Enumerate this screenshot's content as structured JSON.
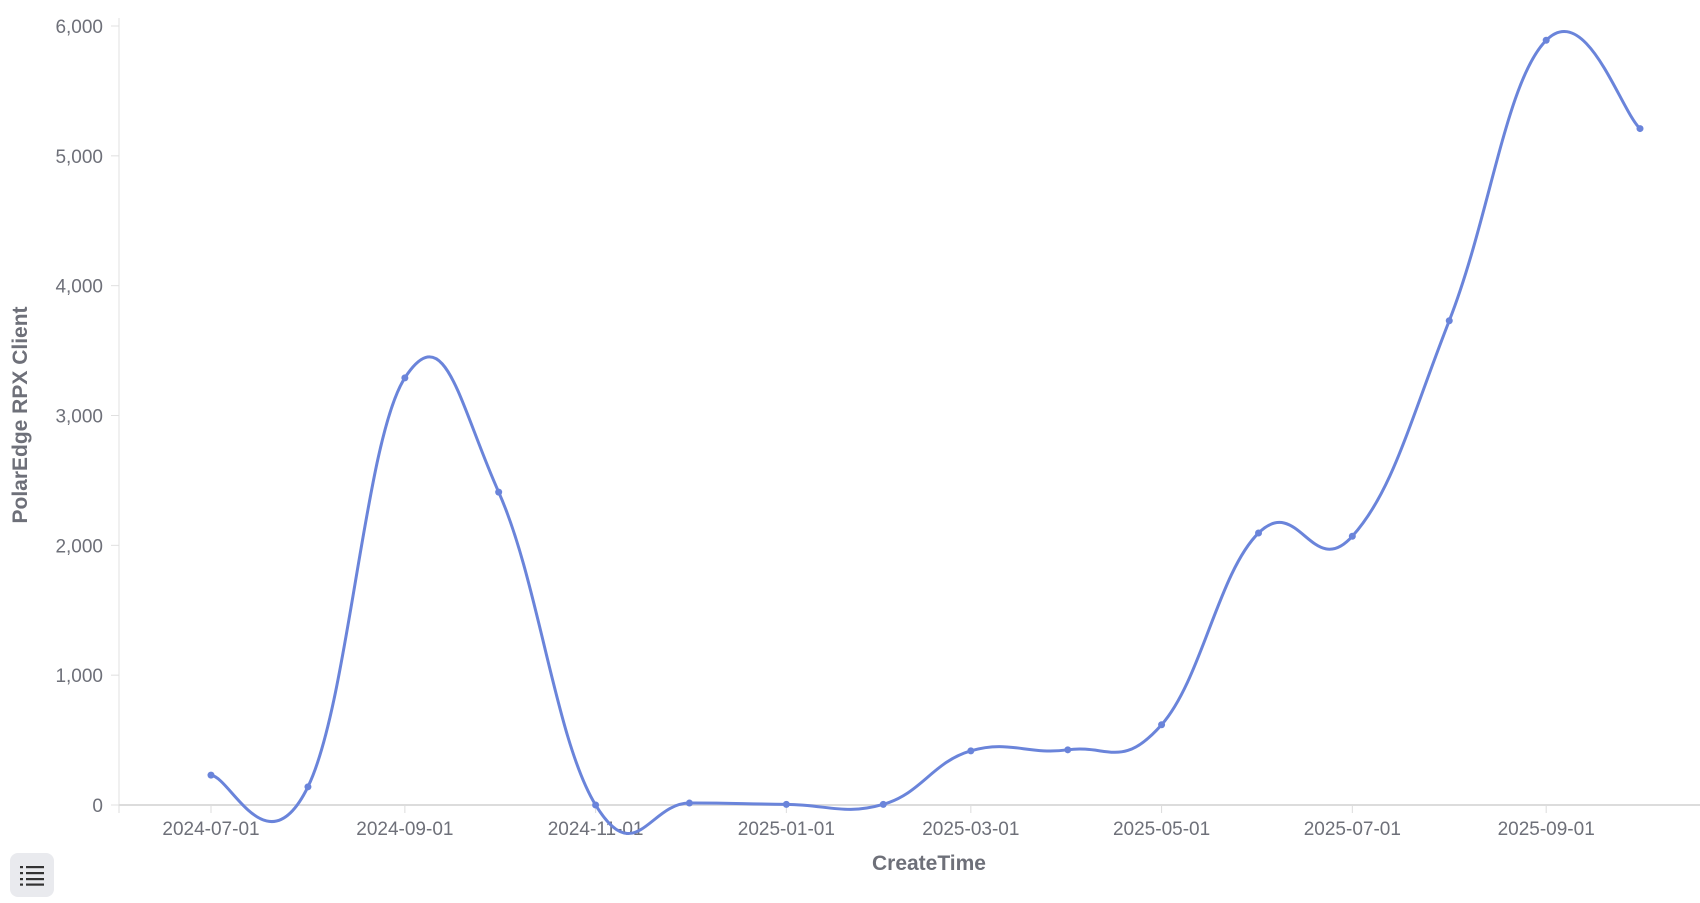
{
  "chart_data": {
    "type": "line",
    "smooth": true,
    "title": "",
    "xlabel": "CreateTime",
    "ylabel": "PolarEdge RPX Client",
    "x": [
      "2024-07-01",
      "2024-08-01",
      "2024-09-01",
      "2024-10-01",
      "2024-11-01",
      "2024-12-01",
      "2025-01-01",
      "2025-02-01",
      "2025-03-01",
      "2025-04-01",
      "2025-05-01",
      "2025-06-01",
      "2025-07-01",
      "2025-08-01",
      "2025-09-01",
      "2025-10-01"
    ],
    "series": [
      {
        "values": [
          230,
          140,
          3290,
          2410,
          0,
          15,
          5,
          5,
          417,
          425,
          618,
          2095,
          2070,
          3730,
          5890,
          5210
        ]
      }
    ],
    "ylim": [
      0,
      6000
    ],
    "yticks": [
      0,
      1000,
      2000,
      3000,
      4000,
      5000,
      6000
    ],
    "ytick_labels": [
      "0",
      "1,000",
      "2,000",
      "3,000",
      "4,000",
      "5,000",
      "6,000"
    ],
    "xticks": [
      "2024-07-01",
      "2024-09-01",
      "2024-11-01",
      "2025-01-01",
      "2025-03-01",
      "2025-05-01",
      "2025-07-01",
      "2025-09-01"
    ],
    "grid": false,
    "line_color": "#6a84da"
  },
  "toolbar": {
    "legend_icon": "list-icon"
  }
}
